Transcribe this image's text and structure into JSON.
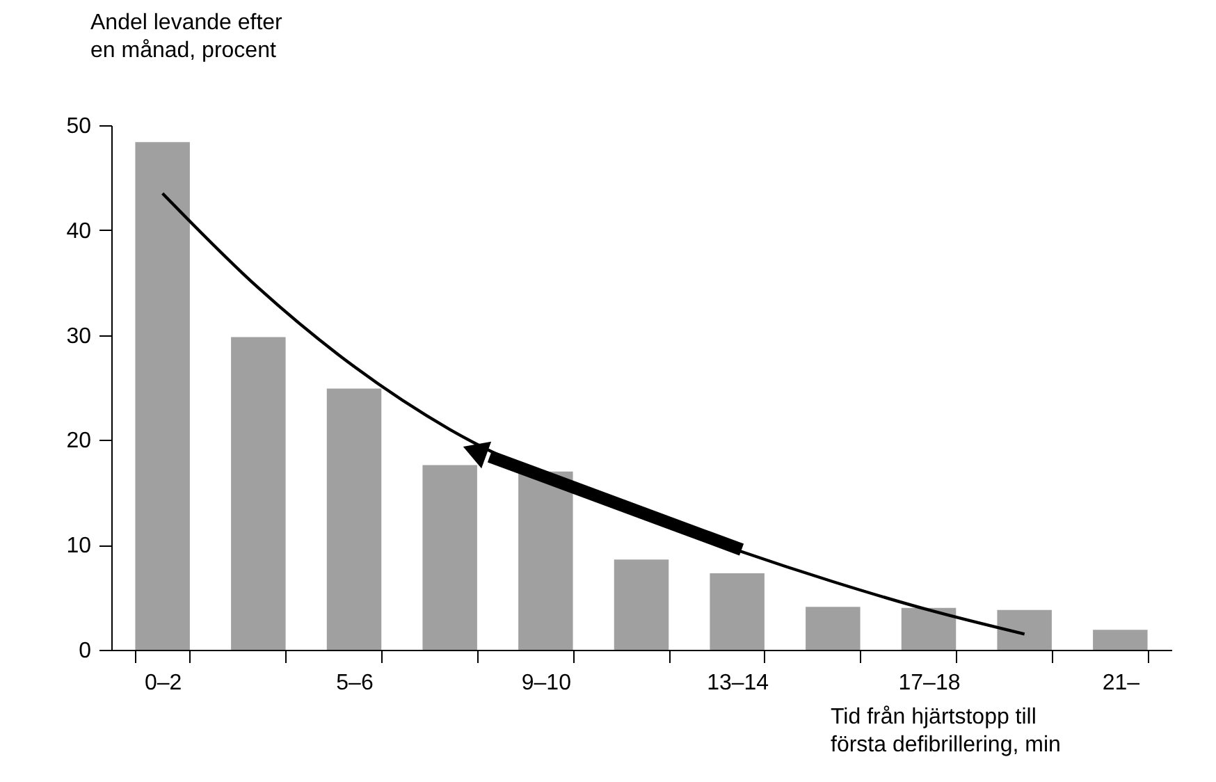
{
  "chart_data": {
    "type": "bar",
    "xlabel": "Tid från hjärtstopp till\nförsta defibrillering, min",
    "ylabel": "Andel levande efter\nen månad, procent",
    "categories": [
      "0–2",
      null,
      "5–6",
      null,
      "9–10",
      null,
      "13–14",
      null,
      "17–18",
      null,
      "21–"
    ],
    "series": [
      {
        "color": "#a0a0a0",
        "values": [
          48.4,
          29.8,
          24.9,
          17.6,
          17.0,
          8.6,
          7.3,
          4.1,
          4.0,
          3.8,
          1.9
        ]
      },
      {
        "type": "line",
        "color": "#000000",
        "values": [
          43.5,
          34.5,
          27.0,
          21.0,
          16.5,
          12.8,
          9.5,
          6.5,
          3.8,
          1.5,
          null
        ]
      }
    ],
    "ylim": [
      0,
      50
    ],
    "yticks": [
      0,
      10,
      20,
      30,
      40,
      50
    ],
    "grid": false
  }
}
